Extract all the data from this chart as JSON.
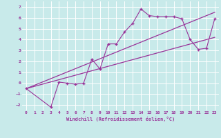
{
  "xlabel": "Windchill (Refroidissement éolien,°C)",
  "bg_color": "#c8eaea",
  "line_color": "#993399",
  "grid_color": "#ffffff",
  "xlim": [
    -0.5,
    23.5
  ],
  "ylim": [
    -2.5,
    7.5
  ],
  "xticks": [
    0,
    1,
    2,
    3,
    4,
    5,
    6,
    7,
    8,
    9,
    10,
    11,
    12,
    13,
    14,
    15,
    16,
    17,
    18,
    19,
    20,
    21,
    22,
    23
  ],
  "yticks": [
    -2,
    -1,
    0,
    1,
    2,
    3,
    4,
    5,
    6,
    7
  ],
  "line1_x": [
    0,
    3,
    4,
    5,
    6,
    7,
    8,
    9,
    10,
    11,
    12,
    13,
    14,
    15,
    16,
    17,
    18,
    19,
    20,
    21,
    22,
    23
  ],
  "line1_y": [
    -0.5,
    -2.2,
    0.1,
    0.0,
    -0.1,
    0.0,
    2.2,
    1.3,
    3.6,
    3.6,
    4.7,
    5.5,
    6.8,
    6.2,
    6.1,
    6.1,
    6.1,
    5.9,
    4.0,
    3.1,
    3.2,
    5.9
  ],
  "line2_x": [
    0,
    23
  ],
  "line2_y": [
    -0.5,
    6.5
  ],
  "line3_x": [
    0,
    23
  ],
  "line3_y": [
    -0.5,
    4.2
  ]
}
